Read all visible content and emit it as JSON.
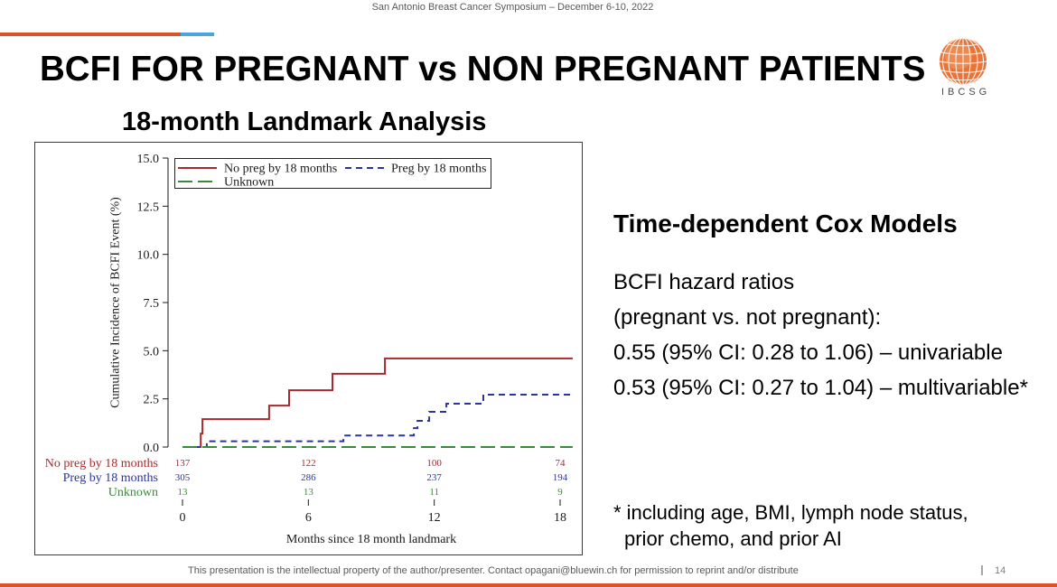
{
  "header": {
    "conference": "San Antonio Breast Cancer Symposium – December 6-10, 2022"
  },
  "theme": {
    "accent_orange": "#d9532b",
    "accent_blue": "#4da3e0",
    "logo_orange": "#e8743a"
  },
  "slide": {
    "title": "BCFI FOR PREGNANT vs NON PREGNANT PATIENTS",
    "logo": {
      "icon": "globe-logo-icon",
      "text": "IBCSG"
    }
  },
  "chart_data": {
    "type": "line",
    "title": "18-month Landmark Analysis",
    "xlabel": "Months since 18 month landmark",
    "ylabel": "Cumulative Incidence of BCFI Event (%)",
    "xlim": [
      0,
      18
    ],
    "ylim": [
      0,
      15
    ],
    "xticks": [
      "0",
      "6",
      "12",
      "18"
    ],
    "yticks": [
      "0.0",
      "2.5",
      "5.0",
      "7.5",
      "10.0",
      "12.5",
      "15.0"
    ],
    "grid": false,
    "series": [
      {
        "name": "No preg by 18 months",
        "color": "#a62a2e",
        "steps": [
          [
            0,
            0
          ],
          [
            0.87,
            0.7
          ],
          [
            0.95,
            1.45
          ],
          [
            4.13,
            2.15
          ],
          [
            5.08,
            2.95
          ],
          [
            7.15,
            3.8
          ],
          [
            9.65,
            4.6
          ]
        ],
        "end_month": 18.6
      },
      {
        "name": "Preg by 18 months",
        "color": "#2c3597",
        "steps": [
          [
            0,
            0
          ],
          [
            1.16,
            0.3
          ],
          [
            7.67,
            0.6
          ],
          [
            11.03,
            0.98
          ],
          [
            11.2,
            1.36
          ],
          [
            11.76,
            1.83
          ],
          [
            12.58,
            2.25
          ],
          [
            14.34,
            2.72
          ]
        ],
        "end_month": 18.6
      },
      {
        "name": "Unknown",
        "color": "#3b8a3b",
        "steps": [
          [
            0,
            0
          ]
        ],
        "end_month": 18.6
      }
    ],
    "risk_table": {
      "times": [
        0,
        6,
        12,
        18
      ],
      "rows": [
        {
          "label": "No preg by 18 months",
          "color": "#a62a2e",
          "values": [
            137,
            122,
            100,
            74
          ]
        },
        {
          "label": "Preg by 18 months",
          "color": "#2c3597",
          "values": [
            305,
            286,
            237,
            194
          ]
        },
        {
          "label": "Unknown",
          "color": "#3b8a3b",
          "values": [
            13,
            13,
            11,
            9
          ]
        }
      ]
    }
  },
  "cox": {
    "heading": "Time-dependent Cox Models",
    "lines": [
      "BCFI hazard ratios",
      "(pregnant vs. not pregnant):",
      "0.55 (95% CI: 0.28 to 1.06) – univariable",
      "0.53 (95% CI: 0.27 to 1.04) – multivariable*"
    ],
    "footnote": [
      "* including age, BMI, lymph node status,",
      "prior chemo, and prior AI"
    ]
  },
  "footer": {
    "disclaimer": "This presentation is the intellectual property of the author/presenter. Contact opagani@bluewin.ch for permission to reprint and/or distribute",
    "page_number": "14"
  }
}
